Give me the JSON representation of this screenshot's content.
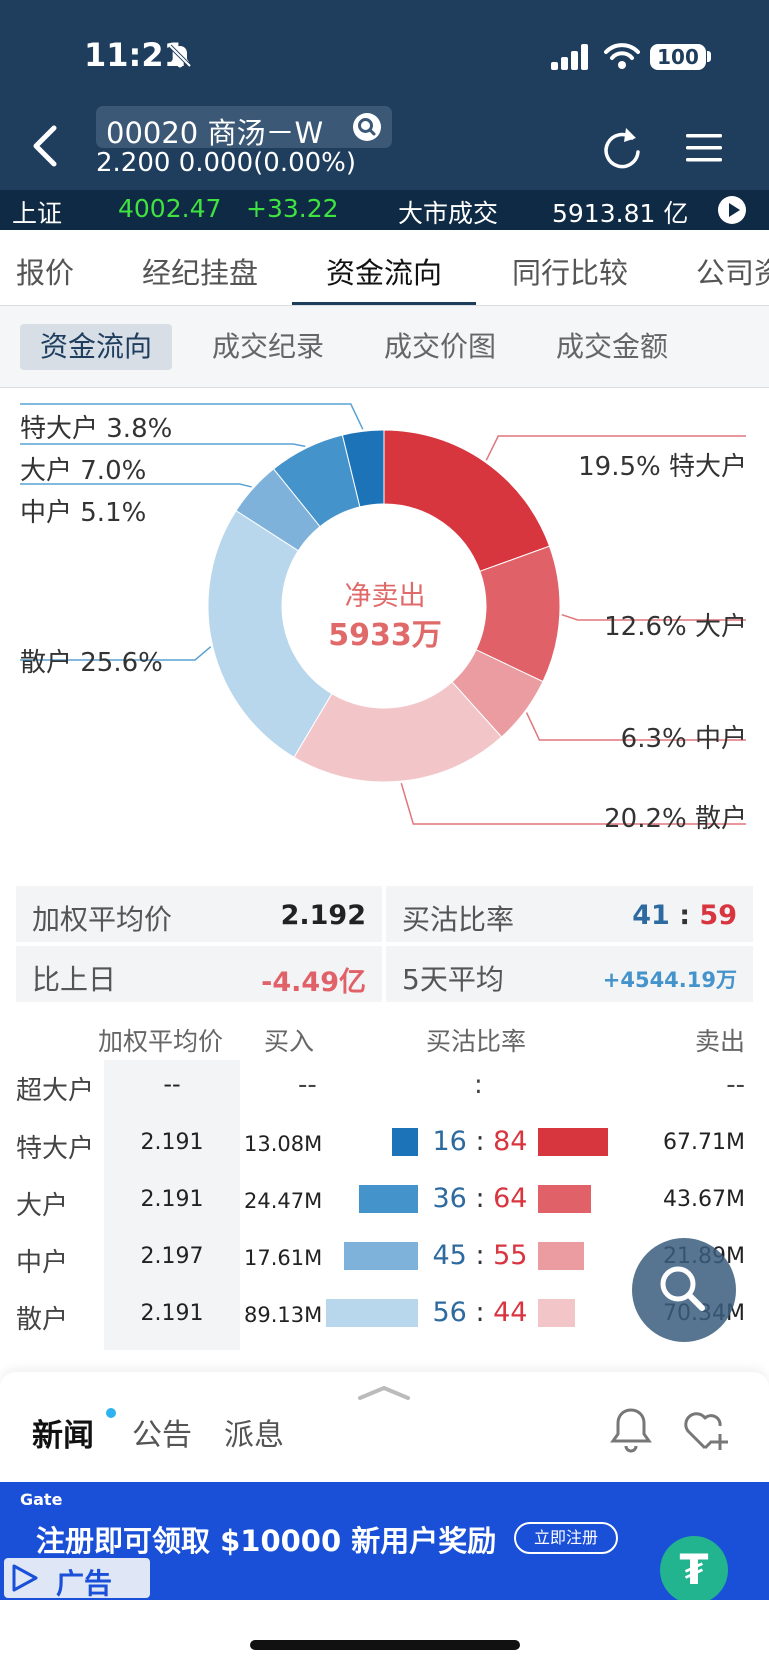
{
  "status_bar": {
    "time": "11:21",
    "battery": "100"
  },
  "header": {
    "stock_name": "00020 商汤－W",
    "price_line": "2.200  0.000(0.00%)"
  },
  "ticker": {
    "index_name": "上证",
    "index_value": "4002.47",
    "index_change": "+33.22",
    "turnover_label": "大市成交",
    "turnover_value": "5913.81 亿"
  },
  "main_tabs": [
    {
      "label": "报价"
    },
    {
      "label": "经纪挂盘"
    },
    {
      "label": "资金流向"
    },
    {
      "label": "同行比较"
    },
    {
      "label": "公司资料"
    }
  ],
  "sub_tabs": [
    {
      "label": "资金流向"
    },
    {
      "label": "成交纪录"
    },
    {
      "label": "成交价图"
    },
    {
      "label": "成交金额"
    }
  ],
  "chart_data": {
    "type": "pie",
    "center_title": "净卖出",
    "center_value": "5933万",
    "slices": [
      {
        "side": "sell",
        "name": "特大户",
        "label": "19.5% 特大户",
        "value": 19.5,
        "color": "#d8363f"
      },
      {
        "side": "sell",
        "name": "大户",
        "label": "12.6% 大户",
        "value": 12.6,
        "color": "#e06268"
      },
      {
        "side": "sell",
        "name": "中户",
        "label": "6.3% 中户",
        "value": 6.3,
        "color": "#ea9ca1"
      },
      {
        "side": "sell",
        "name": "散户",
        "label": "20.2% 散户",
        "value": 20.2,
        "color": "#f2c5c9"
      },
      {
        "side": "buy",
        "name": "散户",
        "label": "散户 25.6%",
        "value": 25.6,
        "color": "#b9d7ec"
      },
      {
        "side": "buy",
        "name": "中户",
        "label": "中户 5.1%",
        "value": 5.1,
        "color": "#7fb2da"
      },
      {
        "side": "buy",
        "name": "大户",
        "label": "大户 7.0%",
        "value": 7.0,
        "color": "#4593cb"
      },
      {
        "side": "buy",
        "name": "特大户",
        "label": "特大户 3.8%",
        "value": 3.8,
        "color": "#1c73b8"
      }
    ]
  },
  "summary": {
    "wavg_label": "加权平均价",
    "wavg_value": "2.192",
    "ratio_label": "买沽比率",
    "ratio_buy": "41",
    "ratio_sep": ":",
    "ratio_sell": "59",
    "prev_label": "比上日",
    "prev_value": "-4.49亿",
    "avg5_label": "5天平均",
    "avg5_value": "+4544.19万"
  },
  "table": {
    "headers": {
      "avg": "加权平均价",
      "buy": "买入",
      "ratio": "买沽比率",
      "sell": "卖出"
    },
    "super_row": {
      "name": "超大户",
      "avg": "--",
      "buy": "--",
      "ratio": ":",
      "sell": "--"
    },
    "rows": [
      {
        "name": "特大户",
        "avg": "2.191",
        "buy": "13.08M",
        "ratio_buy": "16",
        "ratio_sell": "84",
        "sell": "67.71M",
        "buy_pct": 16,
        "sell_pct": 84,
        "buy_color": "#1c73b8",
        "sell_color": "#d8363f"
      },
      {
        "name": "大户",
        "avg": "2.191",
        "buy": "24.47M",
        "ratio_buy": "36",
        "ratio_sell": "64",
        "sell": "43.67M",
        "buy_pct": 36,
        "sell_pct": 64,
        "buy_color": "#4593cb",
        "sell_color": "#e06268"
      },
      {
        "name": "中户",
        "avg": "2.197",
        "buy": "17.61M",
        "ratio_buy": "45",
        "ratio_sell": "55",
        "sell": "21.89M",
        "buy_pct": 45,
        "sell_pct": 55,
        "buy_color": "#7fb2da",
        "sell_color": "#ea9ca1"
      },
      {
        "name": "散户",
        "avg": "2.191",
        "buy": "89.13M",
        "ratio_buy": "56",
        "ratio_sell": "44",
        "sell": "70.34M",
        "buy_pct": 56,
        "sell_pct": 44,
        "buy_color": "#b9d7ec",
        "sell_color": "#f2c5c9"
      }
    ]
  },
  "news": {
    "tabs": [
      {
        "label": "新闻"
      },
      {
        "label": "公告"
      },
      {
        "label": "派息"
      }
    ]
  },
  "ad": {
    "brand": "Gate",
    "text": "注册即可领取 $10000 新用户奖励",
    "button": "立即注册",
    "tag": "广告"
  },
  "colors": {
    "header_bg": "#1f3e5e",
    "ticker_up": "#3fe23f",
    "sell_red": "#d8353f",
    "buy_blue": "#2c6aa0"
  }
}
